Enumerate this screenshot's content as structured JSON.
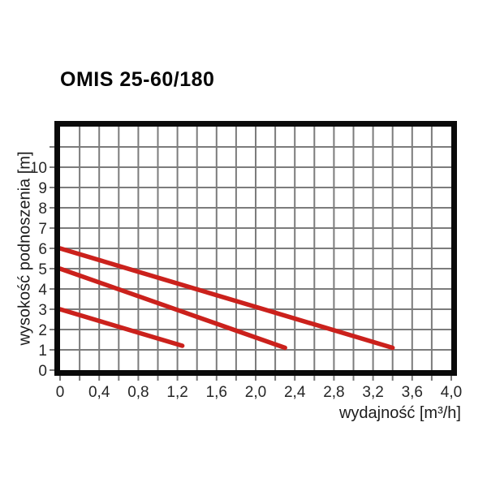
{
  "title": "OMIS 25-60/180",
  "chart_data": {
    "type": "line",
    "title": "OMIS 25-60/180",
    "xlabel": "wydajność [m³/h]",
    "ylabel": "wysokość podnoszenia [m]",
    "xlim": [
      0,
      4.0
    ],
    "ylim": [
      0,
      12
    ],
    "x_grid_step": 0.2,
    "y_grid_step": 1,
    "grid": true,
    "legend": false,
    "decimal_separator": ",",
    "x_ticks": [
      {
        "v": 0.0,
        "label": "0"
      },
      {
        "v": 0.4,
        "label": "0,4"
      },
      {
        "v": 0.8,
        "label": "0,8"
      },
      {
        "v": 1.2,
        "label": "1,2"
      },
      {
        "v": 1.6,
        "label": "1,6"
      },
      {
        "v": 2.0,
        "label": "2,0"
      },
      {
        "v": 2.4,
        "label": "2,4"
      },
      {
        "v": 2.8,
        "label": "2,8"
      },
      {
        "v": 3.2,
        "label": "3,2"
      },
      {
        "v": 3.6,
        "label": "3,6"
      },
      {
        "v": 4.0,
        "label": "4,0"
      }
    ],
    "y_ticks": [
      {
        "v": 0,
        "label": "0"
      },
      {
        "v": 1,
        "label": "1"
      },
      {
        "v": 2,
        "label": "2"
      },
      {
        "v": 3,
        "label": "3"
      },
      {
        "v": 4,
        "label": "4"
      },
      {
        "v": 5,
        "label": "5"
      },
      {
        "v": 6,
        "label": "6"
      },
      {
        "v": 7,
        "label": "7"
      },
      {
        "v": 8,
        "label": "8"
      },
      {
        "v": 9,
        "label": "9"
      },
      {
        "v": 10,
        "label": "10"
      }
    ],
    "series": [
      {
        "name": "curve-1-top",
        "points": [
          [
            0,
            6.0
          ],
          [
            3.4,
            1.1
          ]
        ]
      },
      {
        "name": "curve-2-middle",
        "points": [
          [
            0,
            5.0
          ],
          [
            2.3,
            1.1
          ]
        ]
      },
      {
        "name": "curve-3-bottom",
        "points": [
          [
            0,
            3.0
          ],
          [
            1.25,
            1.2
          ]
        ]
      }
    ],
    "colors": {
      "curve": "#cb211c",
      "grid": "#7c7c7c",
      "frame": "#0a0a0a",
      "tick_text": "#262626",
      "label_text": "#1c1c1c",
      "title_text": "#050505",
      "background": "#ffffff"
    }
  }
}
